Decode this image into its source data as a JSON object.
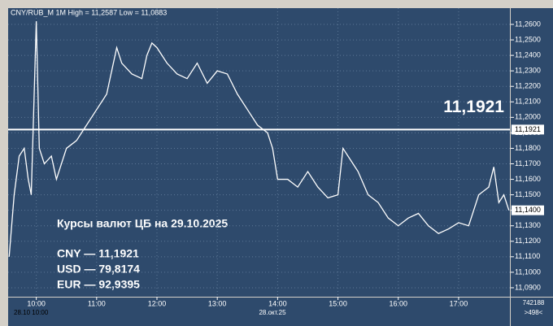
{
  "chart_data": {
    "type": "line",
    "title": "CNY/RUB_M 1M High = 11,2587 Low = 11,0883",
    "x": [
      "09:33",
      "09:38",
      "09:43",
      "09:48",
      "09:52",
      "09:55",
      "10:00",
      "10:03",
      "10:08",
      "10:15",
      "10:20",
      "10:30",
      "10:40",
      "10:50",
      "11:00",
      "11:10",
      "11:15",
      "11:20",
      "11:25",
      "11:35",
      "11:45",
      "11:50",
      "11:55",
      "12:00",
      "12:10",
      "12:20",
      "12:30",
      "12:40",
      "12:50",
      "13:00",
      "13:10",
      "13:20",
      "13:30",
      "13:40",
      "13:50",
      "13:55",
      "14:00",
      "14:10",
      "14:20",
      "14:30",
      "14:40",
      "14:50",
      "15:00",
      "15:05",
      "15:10",
      "15:20",
      "15:30",
      "15:40",
      "15:50",
      "16:00",
      "16:10",
      "16:20",
      "16:30",
      "16:40",
      "16:50",
      "17:00",
      "17:10",
      "17:20",
      "17:30",
      "17:35",
      "17:40",
      "17:45",
      "17:50"
    ],
    "values": [
      11.11,
      11.15,
      11.175,
      11.18,
      11.16,
      11.15,
      11.262,
      11.18,
      11.17,
      11.175,
      11.16,
      11.18,
      11.185,
      11.195,
      11.205,
      11.215,
      11.23,
      11.245,
      11.235,
      11.228,
      11.225,
      11.24,
      11.248,
      11.245,
      11.235,
      11.228,
      11.225,
      11.235,
      11.222,
      11.23,
      11.228,
      11.215,
      11.205,
      11.195,
      11.19,
      11.18,
      11.16,
      11.16,
      11.155,
      11.165,
      11.155,
      11.148,
      11.15,
      11.18,
      11.175,
      11.165,
      11.15,
      11.145,
      11.135,
      11.13,
      11.135,
      11.138,
      11.13,
      11.125,
      11.128,
      11.132,
      11.13,
      11.15,
      11.155,
      11.168,
      11.145,
      11.15,
      11.14
    ],
    "color": "#ffffff",
    "xlim": [
      "09:32",
      "17:51"
    ],
    "xticks": [
      "10:00",
      "11:00",
      "12:00",
      "13:00",
      "14:00",
      "15:00",
      "16:00",
      "17:00"
    ],
    "ylim": [
      11.0842,
      11.2705
    ],
    "yticks": [
      {
        "value": 11.09,
        "label": "11,0900"
      },
      {
        "value": 11.1,
        "label": "11,1000"
      },
      {
        "value": 11.11,
        "label": "11,1100"
      },
      {
        "value": 11.12,
        "label": "11,1200"
      },
      {
        "value": 11.13,
        "label": "11,1300"
      },
      {
        "value": 11.14,
        "label": "11,1400"
      },
      {
        "value": 11.15,
        "label": "11,1500"
      },
      {
        "value": 11.16,
        "label": "11,1600"
      },
      {
        "value": 11.17,
        "label": "11,1700"
      },
      {
        "value": 11.18,
        "label": "11,1800"
      },
      {
        "value": 11.19,
        "label": "11,1900"
      },
      {
        "value": 11.2,
        "label": "11,2000"
      },
      {
        "value": 11.21,
        "label": "11,2100"
      },
      {
        "value": 11.22,
        "label": "11,2200"
      },
      {
        "value": 11.23,
        "label": "11,2300"
      },
      {
        "value": 11.24,
        "label": "11,2400"
      },
      {
        "value": 11.25,
        "label": "11,2500"
      },
      {
        "value": 11.26,
        "label": "11,2600"
      }
    ],
    "grid": true,
    "x_start_label": "28.10 10:00",
    "date_label": "28.окт.25",
    "level": {
      "value": 11.1921,
      "label": "11,1921"
    },
    "last": {
      "value": 11.14,
      "label": "11,1400"
    },
    "annotation": {
      "title": "Курсы валют ЦБ на 29.10.2025",
      "lines": [
        "CNY — 11,1921",
        "USD — 79,8174",
        "EUR — 92,9395"
      ]
    },
    "footer": [
      "742188",
      ">498<"
    ]
  }
}
